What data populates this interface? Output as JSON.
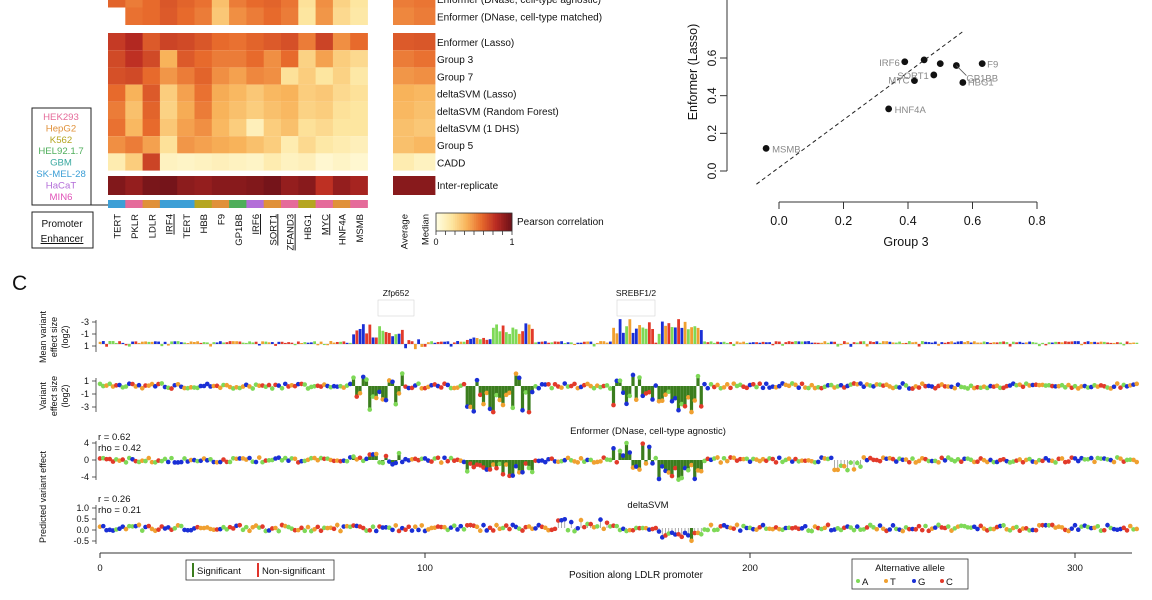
{
  "heatmap": {
    "top_rows": [
      "Enformer (DNase, cell-type agnostic)",
      "Enformer (DNase, cell-type matched)"
    ],
    "main_rows": [
      "Enformer (Lasso)",
      "Group 3",
      "Group 7",
      "deltaSVM (Lasso)",
      "deltaSVM (Random Forest)",
      "deltaSVM (1 DHS)",
      "Group 5",
      "CADD"
    ],
    "inter_row": "Inter-replicate",
    "columns": [
      "TERT",
      "PKLR",
      "LDLR",
      "IRF4",
      "TERT",
      "HBB",
      "F9",
      "GP1BB",
      "IRF6",
      "SORT1",
      "ZFAND3",
      "HBG1",
      "MYC",
      "HNF4A",
      "MSMB"
    ],
    "underlined": [
      3,
      8,
      9,
      10,
      12
    ],
    "summary_columns": [
      "Average",
      "Median"
    ],
    "colorbar": {
      "label": "Pearson correlation",
      "min": "0",
      "max": "1",
      "colors": [
        "#fffde0",
        "#fde6a0",
        "#f8b35a",
        "#e76a2c",
        "#b92a22",
        "#6e1219"
      ]
    },
    "cell_legend": [
      {
        "label": "HEK293",
        "color": "#e56b9a"
      },
      {
        "label": "HepG2",
        "color": "#e0913a"
      },
      {
        "label": "K562",
        "color": "#b5a521"
      },
      {
        "label": "HEL92.1.7",
        "color": "#4fae5b"
      },
      {
        "label": "GBM",
        "color": "#3aa9a0"
      },
      {
        "label": "SK-MEL-28",
        "color": "#3d9fd6"
      },
      {
        "label": "HaCaT",
        "color": "#b36ed8"
      },
      {
        "label": "MIN6",
        "color": "#e052b8"
      }
    ],
    "column_colors": [
      "#3d9fd6",
      "#e56b9a",
      "#e0913a",
      "#3d9fd6",
      "#3d9fd6",
      "#b5a521",
      "#e0913a",
      "#4fae5b",
      "#b36ed8",
      "#e0913a",
      "#e56b9a",
      "#b5a521",
      "#e56b9a",
      "#e0913a",
      "#e56b9a"
    ],
    "promoter_label": "Promoter",
    "enhancer_label": "Enhancer",
    "values_top": [
      [
        0.62,
        0.55,
        0.6,
        0.66,
        0.62,
        0.58,
        0.35,
        0.55,
        0.6,
        0.62,
        0.57,
        0.22,
        0.5,
        0.28,
        0.2
      ],
      [
        null,
        0.58,
        0.6,
        0.65,
        0.6,
        0.55,
        0.32,
        0.5,
        0.55,
        0.6,
        0.55,
        0.2,
        0.48,
        0.25,
        0.18
      ]
    ],
    "summary_top": [
      [
        0.55,
        0.57
      ],
      [
        0.52,
        0.55
      ]
    ],
    "values_main": [
      [
        0.75,
        0.82,
        0.65,
        0.72,
        0.7,
        0.66,
        0.6,
        0.58,
        0.62,
        0.65,
        0.68,
        0.55,
        0.72,
        0.5,
        0.6
      ],
      [
        0.7,
        0.78,
        0.7,
        0.4,
        0.65,
        0.6,
        0.55,
        0.55,
        0.6,
        0.5,
        0.6,
        0.28,
        0.45,
        0.3,
        0.25
      ],
      [
        0.68,
        0.7,
        0.6,
        0.48,
        0.55,
        0.62,
        0.5,
        0.45,
        0.52,
        0.5,
        0.22,
        0.3,
        0.2,
        0.28,
        0.18
      ],
      [
        0.6,
        0.4,
        0.65,
        0.3,
        0.45,
        0.58,
        0.42,
        0.38,
        0.32,
        0.38,
        0.4,
        0.3,
        0.32,
        0.25,
        0.22
      ],
      [
        0.55,
        0.35,
        0.62,
        0.28,
        0.42,
        0.55,
        0.4,
        0.35,
        0.3,
        0.35,
        0.38,
        0.28,
        0.3,
        0.22,
        0.2
      ],
      [
        0.58,
        0.38,
        0.6,
        0.32,
        0.45,
        0.5,
        0.38,
        0.3,
        0.12,
        0.3,
        0.35,
        0.22,
        0.25,
        0.2,
        0.2
      ],
      [
        0.5,
        0.55,
        0.45,
        0.22,
        0.48,
        0.45,
        0.42,
        0.4,
        0.35,
        0.3,
        0.15,
        0.25,
        0.18,
        0.15,
        0.12
      ],
      [
        0.15,
        0.3,
        0.72,
        0.1,
        0.08,
        0.1,
        0.12,
        0.1,
        0.08,
        0.15,
        0.1,
        0.12,
        0.05,
        0.08,
        0.05
      ]
    ],
    "summary_main": [
      [
        0.65,
        0.66
      ],
      [
        0.55,
        0.58
      ],
      [
        0.48,
        0.5
      ],
      [
        0.4,
        0.38
      ],
      [
        0.38,
        0.35
      ],
      [
        0.35,
        0.32
      ],
      [
        0.35,
        0.38
      ],
      [
        0.15,
        0.1
      ]
    ],
    "values_inter": [
      0.95,
      0.9,
      0.97,
      0.98,
      0.92,
      0.9,
      0.93,
      0.93,
      0.95,
      0.98,
      0.9,
      0.93,
      0.78,
      0.9,
      0.85
    ],
    "summary_inter": [
      0.93,
      0.93
    ]
  },
  "scatter": {
    "xlabel": "Group 3",
    "ylabel": "Enformer (Lasso)",
    "xticks": [
      "0.0",
      "0.2",
      "0.4",
      "0.6",
      "0.8"
    ],
    "yticks": [
      "0.0",
      "0.2",
      "0.4",
      "0.6"
    ],
    "points": [
      {
        "label": "MSMB",
        "x": -0.04,
        "y": 0.12
      },
      {
        "label": "HNF4A",
        "x": 0.34,
        "y": 0.33
      },
      {
        "label": "MYC",
        "x": 0.42,
        "y": 0.48
      },
      {
        "label": "SORT1",
        "x": 0.48,
        "y": 0.51
      },
      {
        "label": "HBG1",
        "x": 0.57,
        "y": 0.47
      },
      {
        "label": "GP1BB",
        "x": 0.55,
        "y": 0.56
      },
      {
        "label": "F9",
        "x": 0.63,
        "y": 0.57
      },
      {
        "label": "IRF6",
        "x": 0.39,
        "y": 0.58
      },
      {
        "label": "",
        "x": 0.45,
        "y": 0.59
      },
      {
        "label": "",
        "x": 0.5,
        "y": 0.57
      }
    ]
  },
  "panel_c": {
    "panel_label": "C",
    "motif1": "Zfp652",
    "motif2": "SREBF1/2",
    "track1_ylabel": [
      "Mean variant",
      "effect size",
      "(log2)"
    ],
    "track1_ticks": [
      "-3",
      "-1",
      "1"
    ],
    "track2_ylabel": [
      "Variant",
      "effect size",
      "(log2)"
    ],
    "track2_ticks": [
      "1",
      "-1",
      "-3"
    ],
    "track3_title": "Enformer (DNase, cell-type agnostic)",
    "track3_r": "r = 0.62",
    "track3_rho": "rho = 0.42",
    "track3_ticks": [
      "4",
      "0",
      "-4"
    ],
    "track4_title": "deltaSVM",
    "track4_r": "r = 0.26",
    "track4_rho": "rho = 0.21",
    "track4_ticks": [
      "1.0",
      "0.5",
      "0.0",
      "-0.5"
    ],
    "pred_ylabel": "Predicted variant effect",
    "xlabel": "Position along LDLR promoter",
    "xticks": [
      "0",
      "100",
      "200",
      "300"
    ],
    "sig_legend": [
      {
        "label": "Significant",
        "color": "#3b7d1e"
      },
      {
        "label": "Non-significant",
        "color": "#e0342c"
      }
    ],
    "allele_legend_title": "Alternative allele",
    "alleles": [
      {
        "label": "A",
        "color": "#7ed957"
      },
      {
        "label": "T",
        "color": "#f0a030"
      },
      {
        "label": "G",
        "color": "#1a2fd6"
      },
      {
        "label": "C",
        "color": "#e23a2a"
      }
    ]
  }
}
